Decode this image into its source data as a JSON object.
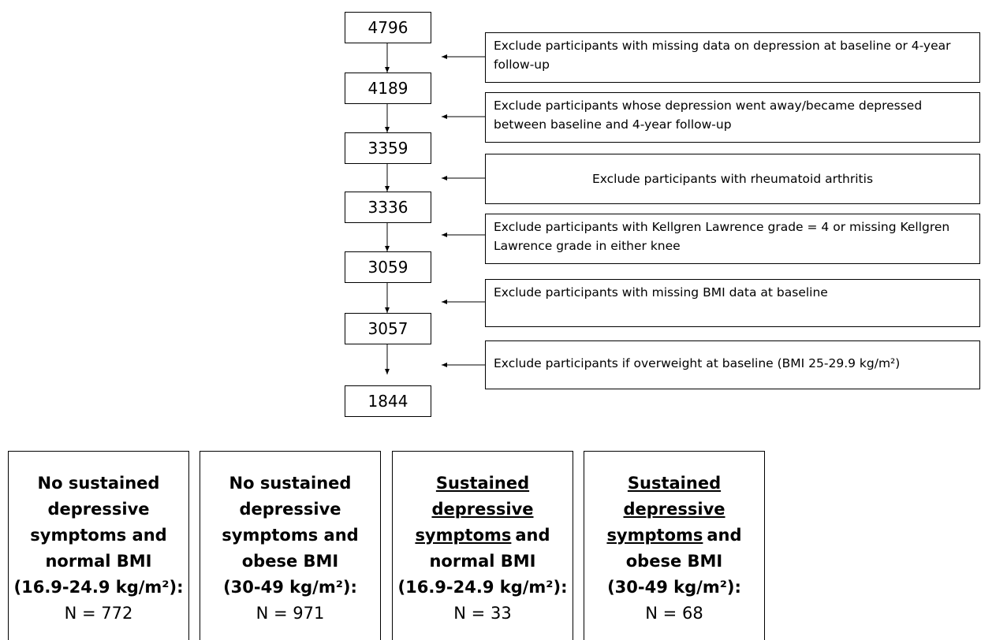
{
  "counts": [
    4796,
    4189,
    3359,
    3336,
    3059,
    3057,
    1844
  ],
  "exclusions": [
    "Exclude participants with missing data on depression at baseline or 4-year follow-up",
    "Exclude participants whose depression went away/became depressed between baseline and 4-year follow-up",
    "Exclude participants with rheumatoid arthritis",
    "Exclude participants with Kellgren Lawrence grade = 4 or missing Kellgren Lawrence grade in either knee",
    "Exclude participants with missing BMI data at baseline",
    "Exclude participants if overweight at baseline (BMI 25-29.9 kg/m²)"
  ],
  "groups": [
    {
      "lines": [
        "No sustained",
        "depressive",
        "symptoms and",
        "normal BMI",
        "(16.9-24.9 kg/m²):"
      ],
      "n": "N = 772"
    },
    {
      "lines": [
        "No sustained",
        "depressive",
        "symptoms and",
        "obese BMI",
        "(30-49 kg/m²):"
      ],
      "n": "N = 971"
    },
    {
      "underlined": [
        "Sustained",
        "depressive",
        "symptoms"
      ],
      "lines": [
        "and",
        "normal BMI",
        "(16.9-24.9 kg/m²):"
      ],
      "n": "N = 33"
    },
    {
      "underlined": [
        "Sustained",
        "depressive",
        "symptoms"
      ],
      "lines": [
        "and",
        "obese BMI",
        "(30-49 kg/m²):"
      ],
      "n": "N = 68"
    }
  ]
}
